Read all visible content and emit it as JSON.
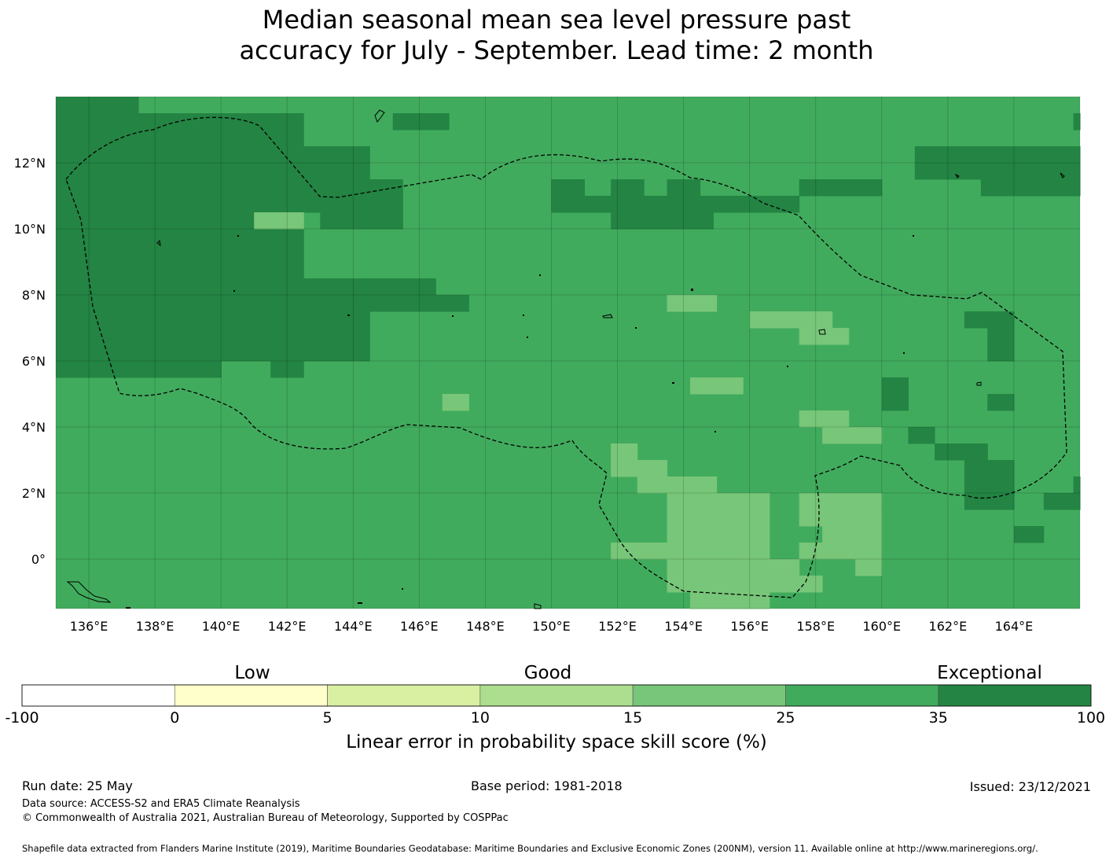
{
  "title_line1": "Median seasonal mean sea level pressure past",
  "title_line2": "accuracy for July - September. Lead time: 2 month",
  "map": {
    "lon_range": [
      135,
      166
    ],
    "lat_range": [
      -1.5,
      14
    ],
    "lon_ticks": [
      "136°E",
      "138°E",
      "140°E",
      "142°E",
      "144°E",
      "146°E",
      "148°E",
      "150°E",
      "152°E",
      "154°E",
      "156°E",
      "158°E",
      "160°E",
      "162°E",
      "164°E"
    ],
    "lat_ticks": [
      "12°N",
      "10°N",
      "8°N",
      "6°N",
      "4°N",
      "2°N",
      "0°"
    ],
    "base_category": 5,
    "dark_category_cells": [
      [
        135,
        137.5,
        13.5,
        14
      ],
      [
        135,
        142.5,
        13,
        13.5
      ],
      [
        135,
        142.5,
        12.5,
        13
      ],
      [
        135,
        144.5,
        12,
        12.5
      ],
      [
        135,
        144.5,
        11.5,
        12
      ],
      [
        135,
        145.5,
        11,
        11.5
      ],
      [
        135,
        145.5,
        10.5,
        11
      ],
      [
        135,
        141,
        10,
        10.5
      ],
      [
        143,
        145.5,
        10,
        10.5
      ],
      [
        135,
        142.5,
        9.5,
        10
      ],
      [
        135,
        142.5,
        9,
        9.5
      ],
      [
        135,
        142.5,
        8.5,
        9
      ],
      [
        135,
        146.5,
        8,
        8.5
      ],
      [
        135,
        147.5,
        7.5,
        8
      ],
      [
        135,
        144.5,
        7,
        7.5
      ],
      [
        135,
        144.5,
        6.5,
        7
      ],
      [
        135,
        144.5,
        6,
        6.5
      ],
      [
        135,
        140,
        5.5,
        6
      ],
      [
        141.5,
        142.5,
        5.5,
        6
      ],
      [
        145.2,
        146.9,
        13,
        13.5
      ],
      [
        150,
        151,
        11,
        11.5
      ],
      [
        151.8,
        152.8,
        11,
        11.5
      ],
      [
        153.5,
        154.5,
        11,
        11.5
      ],
      [
        150,
        157.5,
        10.5,
        11
      ],
      [
        151.8,
        154.9,
        10,
        10.5
      ],
      [
        157.5,
        160,
        11,
        11.5
      ],
      [
        161,
        166,
        12,
        12.5
      ],
      [
        161,
        166,
        11.5,
        12
      ],
      [
        163,
        166,
        11,
        11.5
      ],
      [
        165.8,
        166,
        13,
        13.5
      ],
      [
        162.5,
        164,
        7,
        7.5
      ],
      [
        163.2,
        164,
        6.5,
        7
      ],
      [
        163.2,
        164,
        6,
        6.5
      ],
      [
        160,
        160.8,
        5,
        5.5
      ],
      [
        160,
        160.8,
        4.5,
        5
      ],
      [
        163.2,
        164,
        4.5,
        5
      ],
      [
        160.8,
        161.6,
        3.5,
        4
      ],
      [
        161.6,
        163.2,
        3,
        3.5
      ],
      [
        162.5,
        164,
        2.5,
        3
      ],
      [
        162.5,
        164,
        2,
        2.5
      ],
      [
        162.5,
        164,
        1.5,
        2
      ],
      [
        164.9,
        166,
        1.5,
        2
      ],
      [
        165.8,
        166,
        2,
        2.5
      ],
      [
        164,
        164.9,
        0.5,
        1
      ]
    ],
    "light_category_cells": [
      [
        141,
        142.5,
        10,
        10.5
      ],
      [
        146.7,
        147.5,
        4.5,
        5
      ],
      [
        153.5,
        155,
        7.5,
        8
      ],
      [
        156,
        158.5,
        7,
        7.5
      ],
      [
        157.5,
        159,
        6.5,
        7
      ],
      [
        154.2,
        155.8,
        5,
        5.5
      ],
      [
        157.5,
        159,
        4,
        4.5
      ],
      [
        158.2,
        160,
        3.5,
        4
      ],
      [
        151.8,
        152.6,
        3,
        3.5
      ],
      [
        151.8,
        153.5,
        2.5,
        3
      ],
      [
        152.6,
        155,
        2,
        2.5
      ],
      [
        153.5,
        156.6,
        1.5,
        2
      ],
      [
        153.5,
        156.6,
        1,
        1.5
      ],
      [
        153.5,
        156.6,
        0.5,
        1
      ],
      [
        151.8,
        156.6,
        0,
        0.5
      ],
      [
        153.5,
        157.5,
        -0.5,
        0
      ],
      [
        153.5,
        158.2,
        -1,
        -0.5
      ],
      [
        154.2,
        156.6,
        -1.5,
        -1
      ],
      [
        157.5,
        160,
        1.5,
        2
      ],
      [
        157.5,
        160,
        1,
        1.5
      ],
      [
        158.2,
        160,
        0.5,
        1
      ],
      [
        157.5,
        160,
        0,
        0.5
      ],
      [
        159.2,
        160,
        -0.5,
        0
      ]
    ]
  },
  "legend": {
    "category_labels": [
      "Low",
      "Good",
      "Exceptional"
    ],
    "bins": [
      {
        "from": -100,
        "to": 0,
        "color": "#ffffff"
      },
      {
        "from": 0,
        "to": 5,
        "color": "#ffffcc"
      },
      {
        "from": 5,
        "to": 10,
        "color": "#d9f0a3"
      },
      {
        "from": 10,
        "to": 15,
        "color": "#addd8e"
      },
      {
        "from": 15,
        "to": 25,
        "color": "#78c679"
      },
      {
        "from": 25,
        "to": 35,
        "color": "#41ab5d"
      },
      {
        "from": 35,
        "to": 100,
        "color": "#238443"
      }
    ],
    "tick_labels": [
      "-100",
      "0",
      "5",
      "10",
      "15",
      "25",
      "35",
      "100"
    ],
    "title": "Linear error in probability space skill score (%)"
  },
  "footer": {
    "run_date": "Run date: 25 May",
    "base_period": "Base period: 1981-2018",
    "issued": "Issued: 23/12/2021",
    "data_source": "Data source: ACCESS-S2 and ERA5 Climate Reanalysis",
    "copyright": "© Commonwealth of Australia 2021, Australian Bureau of Meteorology, Supported by COSPPac",
    "shapefile": "Shapefile data extracted from Flanders Marine Institute (2019), Maritime Boundaries Geodatabase: Maritime Boundaries and Exclusive Economic Zones (200NM), version 11. Available online at http://www.marineregions.org/."
  }
}
